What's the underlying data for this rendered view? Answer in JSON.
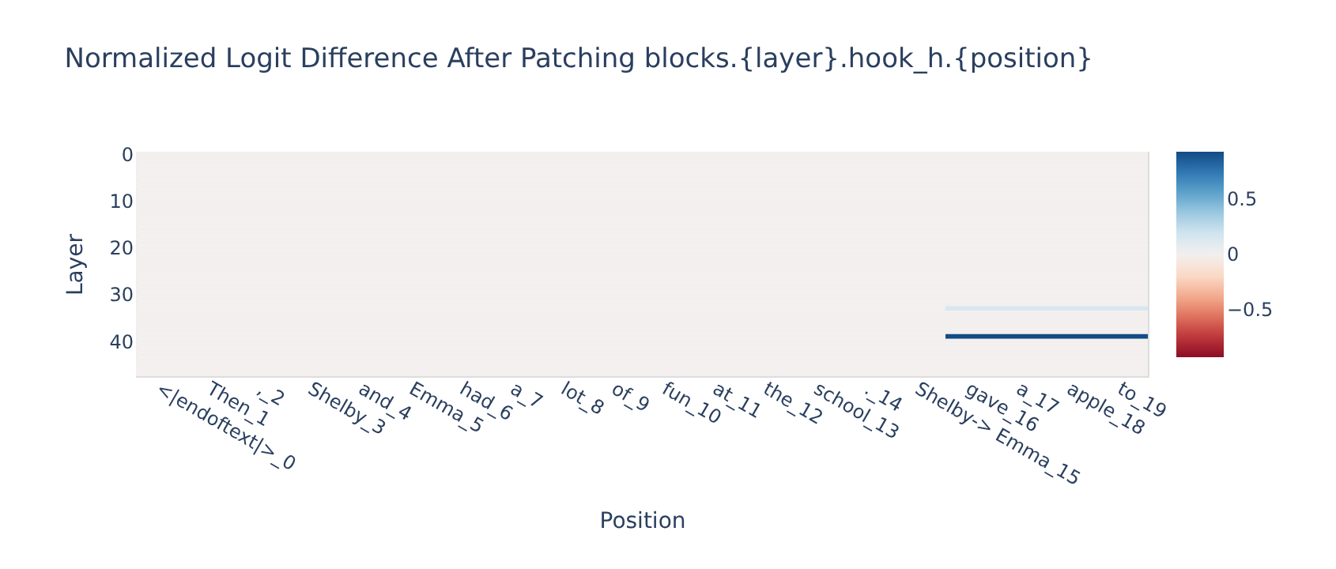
{
  "chart_data": {
    "type": "heatmap",
    "title": "Normalized Logit Difference After Patching blocks.{layer}.hook_h.{position}",
    "xlabel": "Position",
    "ylabel": "Layer",
    "categories": [
      "<|endoftext|>_0",
      "Then_1",
      ",_2",
      "Shelby_3",
      "and_4",
      "Emma_5",
      "had_6",
      "a_7",
      "lot_8",
      "of_9",
      "fun_10",
      "at_11",
      "the_12",
      "school_13",
      "._14",
      "Shelby-> Emma_15",
      "gave_16",
      "a_17",
      "apple_18",
      "to_19"
    ],
    "ylim": [
      47.5,
      -0.5
    ],
    "yticks": [
      0,
      10,
      20,
      30,
      40
    ],
    "clim": [
      -0.93,
      0.93
    ],
    "cticks": [
      -0.5,
      0,
      0.5
    ],
    "cells": [
      [
        0,
        0,
        0,
        0,
        0,
        0,
        0,
        0,
        0,
        0,
        0,
        0,
        0,
        0,
        0,
        0,
        0,
        0,
        0,
        0
      ],
      [
        0,
        0,
        0,
        0,
        0,
        0,
        0,
        0,
        0,
        0,
        0,
        0,
        0,
        0,
        0,
        0,
        0,
        0,
        0,
        0
      ],
      [
        0,
        0,
        0,
        0,
        0,
        0,
        0,
        0,
        0,
        0,
        0,
        0,
        0,
        0,
        0,
        0,
        0,
        0,
        0,
        0
      ],
      [
        0,
        0,
        0,
        0,
        0,
        0,
        0,
        0,
        0,
        0,
        0,
        0,
        0,
        0,
        0,
        0,
        0,
        0,
        0,
        0
      ],
      [
        0,
        0,
        0,
        0,
        0,
        0,
        0,
        0,
        0,
        0,
        0,
        0,
        0,
        0,
        0,
        0,
        0,
        0,
        0,
        0
      ],
      [
        0,
        0,
        0,
        0,
        0,
        0,
        0,
        0,
        0,
        0,
        0,
        0,
        0,
        0,
        0,
        0,
        0,
        0,
        0,
        0
      ],
      [
        0,
        0,
        0,
        0,
        0,
        0,
        0,
        0,
        0,
        0,
        0,
        0,
        0,
        0,
        0,
        0,
        0,
        0,
        0,
        0
      ],
      [
        0,
        0,
        0,
        0,
        0,
        0,
        0,
        0,
        0,
        0,
        0,
        0,
        0,
        0,
        0,
        0,
        0,
        0,
        0,
        0
      ],
      [
        0,
        0,
        0,
        0,
        0,
        0,
        0,
        0,
        0,
        0,
        0,
        0,
        0,
        0,
        0,
        0,
        0,
        0,
        0,
        0
      ],
      [
        0,
        0,
        0,
        0,
        0,
        0,
        0,
        0,
        0,
        0,
        0,
        0,
        0,
        0,
        0,
        0,
        0,
        0,
        0,
        0
      ],
      [
        0,
        0,
        0,
        0,
        0,
        0,
        0,
        0,
        0,
        0,
        0,
        0,
        0,
        0,
        0,
        0,
        0,
        0,
        0,
        0
      ],
      [
        0,
        0,
        0,
        0,
        0,
        0,
        0,
        0,
        0,
        0,
        0,
        0,
        0,
        0,
        0,
        0,
        0,
        0,
        0,
        0
      ],
      [
        0,
        0,
        0,
        0,
        0,
        0,
        0,
        0,
        0,
        0,
        0,
        0,
        0,
        0,
        0,
        0,
        0,
        0,
        0,
        0
      ],
      [
        0,
        0,
        0,
        0,
        0,
        0,
        0,
        0,
        0,
        0,
        0,
        0,
        0,
        0,
        0,
        0,
        0,
        0,
        0,
        0
      ],
      [
        0,
        0,
        0,
        0,
        0,
        0,
        0,
        0,
        0,
        0,
        0,
        0,
        0,
        0,
        0,
        0,
        0,
        0,
        0,
        0
      ],
      [
        0,
        0,
        0,
        0,
        0,
        0,
        0,
        0,
        0,
        0,
        0,
        0,
        0,
        0,
        0,
        0,
        0,
        0,
        0,
        0
      ],
      [
        0,
        0,
        0,
        0,
        0,
        0,
        0,
        0,
        0,
        0,
        0,
        0,
        0,
        0,
        0,
        0,
        0,
        0,
        0,
        0
      ],
      [
        0,
        0,
        0,
        0,
        0,
        0,
        0,
        0,
        0,
        0,
        0,
        0,
        0,
        0,
        0,
        0,
        0,
        0,
        0,
        0
      ],
      [
        0,
        0,
        0,
        0,
        0,
        0,
        0,
        0,
        0,
        0,
        0,
        0,
        0,
        0,
        0,
        0,
        0,
        0,
        0,
        0
      ],
      [
        0,
        0,
        0,
        0,
        0,
        0,
        0,
        0,
        0,
        0,
        0,
        0,
        0,
        0,
        0,
        0,
        0,
        0,
        0,
        0
      ],
      [
        0,
        0,
        0,
        0,
        0,
        0,
        0,
        0,
        0,
        0,
        0,
        0,
        0,
        0,
        0,
        0,
        0,
        0,
        0,
        0
      ],
      [
        0,
        0,
        0,
        0,
        0,
        0,
        0,
        0,
        0,
        0,
        0,
        0,
        0,
        0,
        0,
        0,
        0,
        0,
        0,
        0
      ],
      [
        0,
        0,
        0,
        0,
        0,
        0,
        0,
        0,
        0,
        0,
        0,
        0,
        0,
        0,
        0,
        0,
        0,
        0,
        0,
        0
      ],
      [
        0,
        0,
        0,
        0,
        0,
        0,
        0,
        0,
        0,
        0,
        0,
        0,
        0,
        0,
        0,
        0,
        0,
        0,
        0,
        0
      ],
      [
        0,
        0,
        0,
        0,
        0,
        0,
        0,
        0,
        0,
        0,
        0,
        0,
        0,
        0,
        0,
        0,
        0,
        0,
        0,
        0
      ],
      [
        0,
        0,
        0,
        0,
        0,
        0,
        0,
        0,
        0,
        0,
        0,
        0,
        0,
        0,
        0,
        0,
        0,
        0,
        0,
        0
      ],
      [
        0,
        0,
        0,
        0,
        0,
        0,
        0,
        0,
        0,
        0,
        0,
        0,
        0,
        0,
        0,
        0,
        0,
        0,
        0,
        0
      ],
      [
        0,
        0,
        0,
        0,
        0,
        0,
        0,
        0,
        0,
        0,
        0,
        0,
        0,
        0,
        0,
        0,
        0,
        0,
        0,
        0
      ],
      [
        0,
        0,
        0,
        0,
        0,
        0,
        0,
        0,
        0,
        0,
        0,
        0,
        0,
        0,
        0,
        0,
        0,
        0,
        0,
        0
      ],
      [
        0,
        0,
        0,
        0,
        0,
        0,
        0,
        0,
        0,
        0,
        0,
        0,
        0,
        0,
        0,
        0,
        0,
        0,
        0,
        0
      ],
      [
        0,
        0,
        0,
        0,
        0,
        0,
        0,
        0,
        0,
        0,
        0,
        0,
        0,
        0,
        0,
        0,
        0,
        0,
        0,
        0
      ],
      [
        0,
        0,
        0,
        0,
        0,
        0,
        0,
        0,
        0,
        0,
        0,
        0,
        0,
        0,
        0,
        0,
        0,
        0,
        0,
        0
      ],
      [
        0,
        0,
        0,
        0,
        0,
        0,
        0,
        0,
        0,
        0,
        0,
        0,
        0,
        0,
        0,
        0,
        0,
        0,
        0,
        0
      ],
      [
        0,
        0,
        0,
        0,
        0,
        0,
        0,
        0,
        0,
        0,
        0,
        0,
        0,
        0,
        0,
        0,
        0.15,
        0.15,
        0.15,
        0.15
      ],
      [
        0,
        0,
        0,
        0,
        0,
        0,
        0,
        0,
        0,
        0,
        0,
        0,
        0,
        0,
        0,
        0,
        0,
        0,
        0,
        0
      ],
      [
        0,
        0,
        0,
        0,
        0,
        0,
        0,
        0,
        0,
        0,
        0,
        0,
        0,
        0,
        0,
        0,
        0,
        0,
        0,
        0
      ],
      [
        0,
        0,
        0,
        0,
        0,
        0,
        0,
        0,
        0,
        0,
        0,
        0,
        0,
        0,
        0,
        0,
        0,
        0,
        0,
        0
      ],
      [
        0,
        0,
        0,
        0,
        0,
        0,
        0,
        0,
        0,
        0,
        0,
        0,
        0,
        0,
        0,
        0,
        0,
        0,
        0,
        0
      ],
      [
        0,
        0,
        0,
        0,
        0,
        0,
        0,
        0,
        0,
        0,
        0,
        0,
        0,
        0,
        0,
        0,
        0,
        0,
        0,
        0
      ],
      [
        0,
        0,
        0,
        0,
        0,
        0,
        0,
        0,
        0,
        0,
        0,
        0,
        0,
        0,
        0,
        0,
        0.93,
        0.93,
        0.93,
        0.93
      ],
      [
        0,
        0,
        0,
        0,
        0,
        0,
        0,
        0,
        0,
        0,
        0,
        0,
        0,
        0,
        0,
        0,
        0,
        0,
        0,
        0
      ],
      [
        0,
        0,
        0,
        0,
        0,
        0,
        0,
        0,
        0,
        0,
        0,
        0,
        0,
        0,
        0,
        0,
        0,
        0,
        0,
        0
      ],
      [
        0,
        0,
        0,
        0,
        0,
        0,
        0,
        0,
        0,
        0,
        0,
        0,
        0,
        0,
        0,
        0,
        0,
        0,
        0,
        0
      ],
      [
        0,
        0,
        0,
        0,
        0,
        0,
        0,
        0,
        0,
        0,
        0,
        0,
        0,
        0,
        0,
        0,
        0,
        0,
        0,
        0
      ],
      [
        0,
        0,
        0,
        0,
        0,
        0,
        0,
        0,
        0,
        0,
        0,
        0,
        0,
        0,
        0,
        0,
        0,
        0,
        0,
        0
      ],
      [
        0,
        0,
        0,
        0,
        0,
        0,
        0,
        0,
        0,
        0,
        0,
        0,
        0,
        0,
        0,
        0,
        0,
        0,
        0,
        0
      ],
      [
        0,
        0,
        0,
        0,
        0,
        0,
        0,
        0,
        0,
        0,
        0,
        0,
        0,
        0,
        0,
        0,
        0,
        0,
        0,
        0
      ],
      [
        0,
        0,
        0,
        0,
        0,
        0,
        0,
        0,
        0,
        0,
        0,
        0,
        0,
        0,
        0,
        0,
        0,
        0,
        0,
        0
      ]
    ]
  }
}
